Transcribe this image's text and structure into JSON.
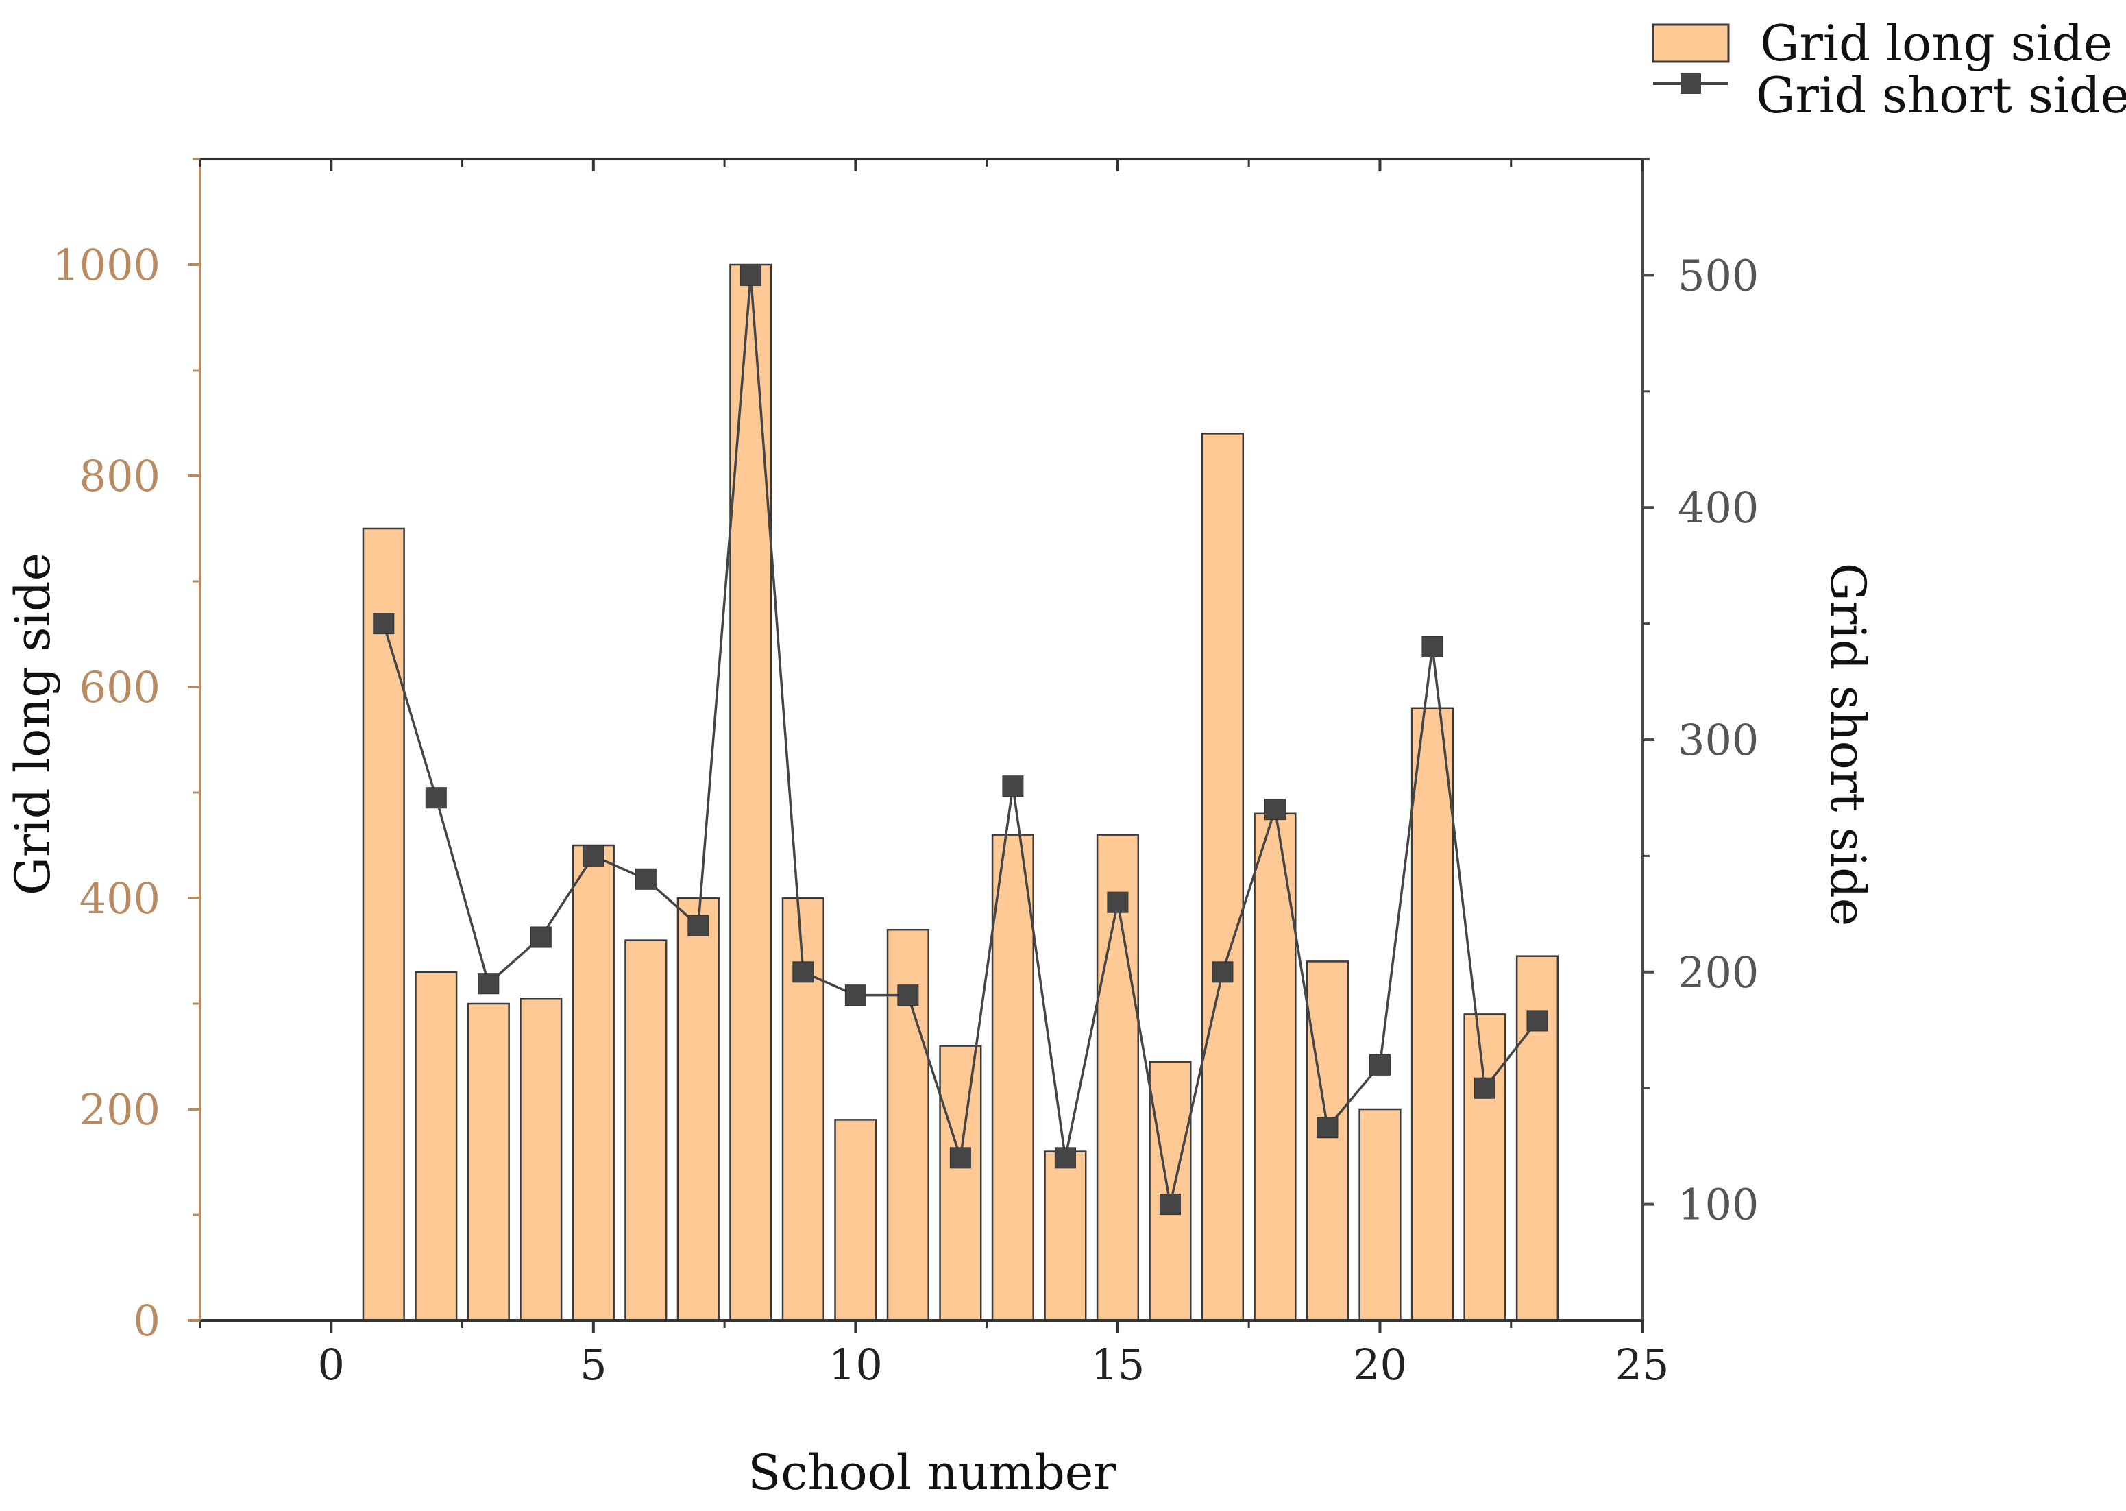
{
  "chart_data": {
    "type": "bar+line",
    "xlabel": "School number",
    "ylabel_left": "Grid long side",
    "ylabel_right": "Grid short side",
    "xlim": [
      -2.5,
      25
    ],
    "ylim_left": [
      0,
      1100
    ],
    "ylim_right": [
      50,
      550
    ],
    "x_ticks": [
      0,
      5,
      10,
      15,
      20,
      25
    ],
    "y_left_ticks": [
      0,
      200,
      400,
      600,
      800,
      1000
    ],
    "y_right_ticks": [
      100,
      200,
      300,
      400,
      500
    ],
    "legend_position": "top-right",
    "series": [
      {
        "name": "Grid long side",
        "type": "bar",
        "axis": "left",
        "x": [
          1,
          2,
          3,
          4,
          5,
          6,
          7,
          8,
          9,
          10,
          11,
          12,
          13,
          14,
          15,
          16,
          17,
          18,
          19,
          20,
          21,
          22,
          23
        ],
        "values": [
          750,
          330,
          300,
          305,
          450,
          360,
          400,
          1000,
          400,
          190,
          370,
          260,
          460,
          160,
          460,
          245,
          840,
          480,
          340,
          200,
          580,
          290,
          345
        ]
      },
      {
        "name": "Grid short side",
        "type": "line",
        "axis": "right",
        "x": [
          1,
          2,
          3,
          4,
          5,
          6,
          7,
          8,
          9,
          10,
          11,
          12,
          13,
          14,
          15,
          16,
          17,
          18,
          19,
          20,
          21,
          22,
          23
        ],
        "values": [
          350,
          275,
          195,
          215,
          250,
          240,
          220,
          500,
          200,
          190,
          190,
          120,
          280,
          120,
          230,
          100,
          200,
          270,
          133,
          160,
          340,
          150,
          179
        ]
      }
    ],
    "colors": {
      "bar_fill": "#fec995",
      "bar_stroke": "#3a3a3a",
      "line": "#454545",
      "marker": "#454545",
      "left_axis": "#b98b62",
      "right_axis": "#4a4a4a",
      "frame": "#333333"
    }
  }
}
